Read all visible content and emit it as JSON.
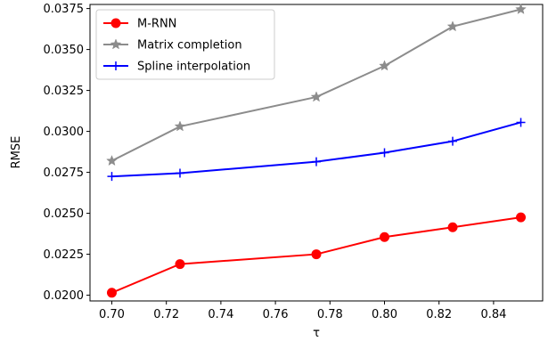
{
  "chart_data": {
    "type": "line",
    "title": "",
    "xlabel": "τ",
    "ylabel": "RMSE",
    "xlim": [
      0.692,
      0.858
    ],
    "ylim": [
      0.01965,
      0.03775
    ],
    "xticks": [
      0.7,
      0.72,
      0.74,
      0.76,
      0.78,
      0.8,
      0.82,
      0.84
    ],
    "xtick_labels": [
      "0.70",
      "0.72",
      "0.74",
      "0.76",
      "0.78",
      "0.80",
      "0.82",
      "0.84"
    ],
    "yticks": [
      0.02,
      0.0225,
      0.025,
      0.0275,
      0.03,
      0.0325,
      0.035,
      0.0375
    ],
    "ytick_labels": [
      "0.0200",
      "0.0225",
      "0.0250",
      "0.0275",
      "0.0300",
      "0.0325",
      "0.0350",
      "0.0375"
    ],
    "grid": false,
    "legend_position": "top-left",
    "x": [
      0.7,
      0.725,
      0.775,
      0.8,
      0.825,
      0.85
    ],
    "series": [
      {
        "name": "M-RNN",
        "color": "#ff0000",
        "marker": "circle",
        "values": [
          0.02015,
          0.0219,
          0.0225,
          0.02355,
          0.02415,
          0.02475
        ]
      },
      {
        "name": "Matrix completion",
        "color": "#8c8c8c",
        "marker": "star",
        "values": [
          0.0282,
          0.0303,
          0.0321,
          0.034,
          0.0364,
          0.03745
        ]
      },
      {
        "name": "Spline interpolation",
        "color": "#0000ff",
        "marker": "plus",
        "values": [
          0.02725,
          0.02745,
          0.02815,
          0.0287,
          0.0294,
          0.03055
        ]
      }
    ]
  }
}
